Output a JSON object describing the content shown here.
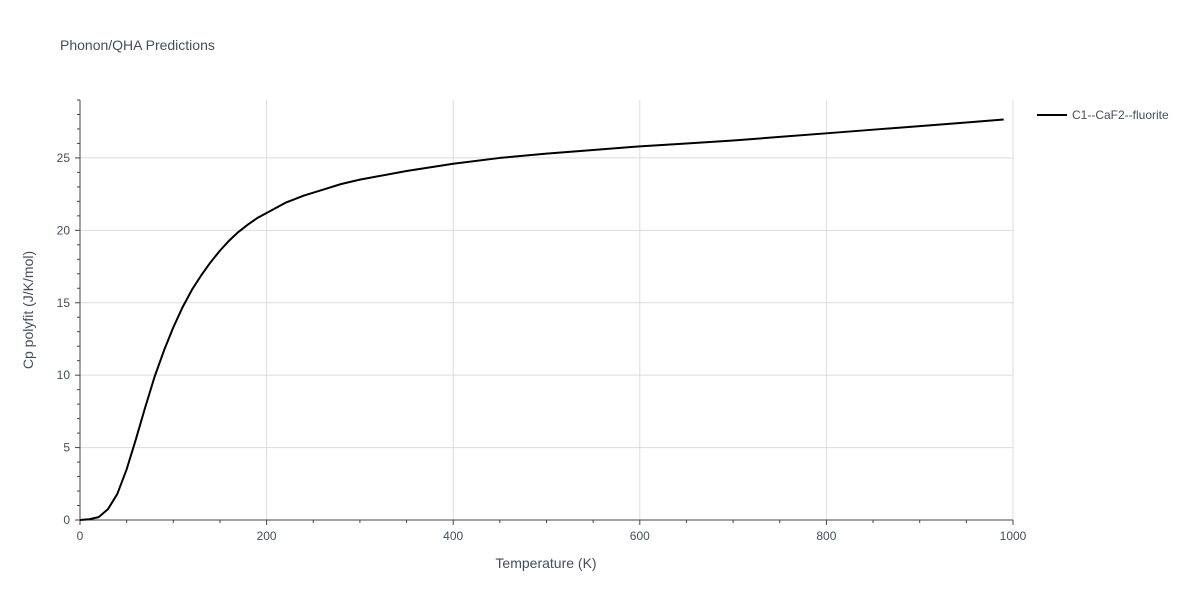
{
  "chart_data": {
    "type": "line",
    "title": "Phonon/QHA Predictions",
    "xlabel": "Temperature (K)",
    "ylabel": "Cp polyfit (J/K/mol)",
    "xlim": [
      0,
      1000
    ],
    "ylim": [
      0,
      29
    ],
    "xticks": [
      0,
      200,
      400,
      600,
      800,
      1000
    ],
    "yticks": [
      0,
      5,
      10,
      15,
      20,
      25
    ],
    "grid": true,
    "legend_position": "top-right",
    "series": [
      {
        "name": "C1--CaF2--fluorite",
        "color": "#000000",
        "x": [
          0,
          10,
          20,
          30,
          40,
          50,
          60,
          70,
          80,
          90,
          100,
          110,
          120,
          130,
          140,
          150,
          160,
          170,
          180,
          190,
          200,
          220,
          240,
          260,
          280,
          300,
          350,
          400,
          450,
          500,
          550,
          600,
          650,
          700,
          750,
          800,
          850,
          900,
          950,
          990
        ],
        "y": [
          0,
          0.05,
          0.2,
          0.75,
          1.8,
          3.5,
          5.6,
          7.8,
          9.9,
          11.7,
          13.3,
          14.7,
          15.9,
          16.9,
          17.8,
          18.6,
          19.3,
          19.9,
          20.4,
          20.85,
          21.2,
          21.9,
          22.4,
          22.8,
          23.2,
          23.5,
          24.1,
          24.6,
          25.0,
          25.3,
          25.55,
          25.8,
          26.0,
          26.2,
          26.45,
          26.7,
          26.95,
          27.2,
          27.45,
          27.65
        ]
      }
    ]
  }
}
